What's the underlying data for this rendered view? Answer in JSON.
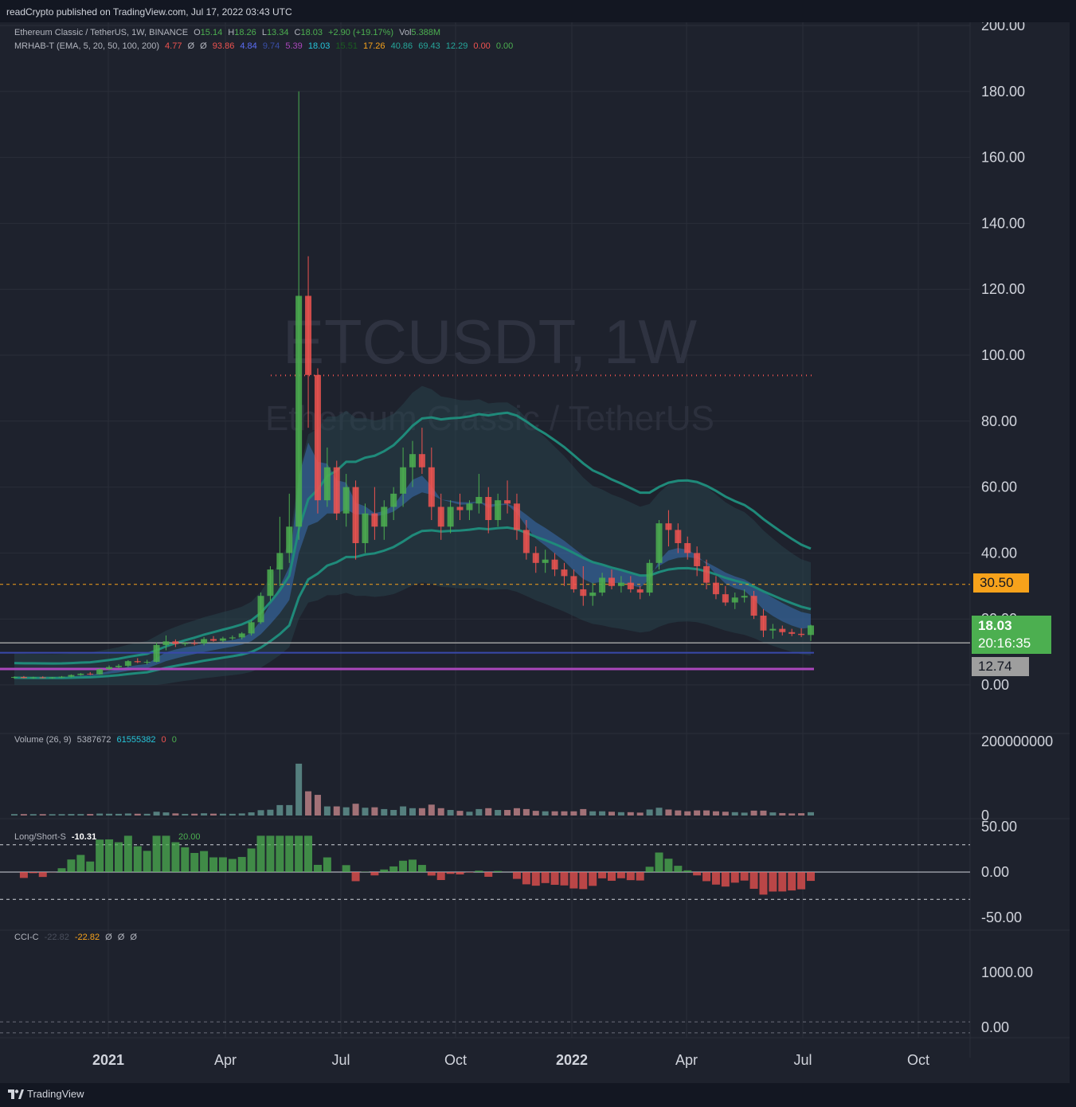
{
  "header": {
    "published_by": "readCrypto published on TradingView.com, Jul 17, 2022 03:43 UTC"
  },
  "legend_main": {
    "symbol": "Ethereum Classic / TetherUS, 1W, BINANCE",
    "o_label": "O",
    "o": "15.14",
    "h_label": "H",
    "h": "18.26",
    "l_label": "L",
    "l": "13.34",
    "c_label": "C",
    "c": "18.03",
    "change": "+2.90 (+19.17%)",
    "vol_label": "Vol",
    "vol": "5.388M"
  },
  "legend_mrhab": {
    "name": "MRHAB-T (EMA, 5, 20, 50, 100, 200)",
    "values": [
      "4.77",
      "Ø",
      "Ø",
      "93.86",
      "4.84",
      "9.74",
      "5.39",
      "18.03",
      "15.51",
      "17.26",
      "40.86",
      "69.43",
      "12.29",
      "0.00",
      "0.00"
    ]
  },
  "legend_volume": {
    "name": "Volume (26, 9)",
    "v1": "5387672",
    "v2": "61555382",
    "v3": "0",
    "v4": "0"
  },
  "legend_ls": {
    "name": "Long/Short-S",
    "value": "-10.31",
    "level": "20.00"
  },
  "legend_cci": {
    "name": "CCI-C",
    "v1": "-22.82",
    "v2": "-22.82",
    "v3": "Ø",
    "v4": "Ø",
    "v5": "Ø"
  },
  "watermark": {
    "symbol": "ETCUSDT, 1W",
    "name": "Ethereum Classic / TetherUS"
  },
  "price_axis": {
    "ticks": [
      "200.00",
      "180.00",
      "160.00",
      "140.00",
      "120.00",
      "100.00",
      "80.00",
      "60.00",
      "40.00",
      "20.00",
      "0.00"
    ]
  },
  "volume_axis": {
    "ticks": [
      "200000000",
      "0"
    ]
  },
  "ls_axis": {
    "ticks": [
      "50.00",
      "0.00",
      "-50.00"
    ]
  },
  "cci_axis": {
    "ticks": [
      "1000.00",
      "0.00"
    ]
  },
  "time_axis": {
    "ticks": [
      "2021",
      "Apr",
      "Jul",
      "Oct",
      "2022",
      "Apr",
      "Jul",
      "Oct"
    ]
  },
  "badges": {
    "orange_level": "30.50",
    "last_price": "18.03",
    "countdown": "20:16:35",
    "gray_level": "12.74"
  },
  "colors": {
    "up": "#4caf50",
    "down": "#ef5350",
    "orange": "#f7a21b",
    "teal": "#26a69a",
    "background": "#1e222d"
  },
  "chart_data": {
    "type": "candlestick",
    "timeframe": "1W",
    "ylim": [
      0,
      200
    ],
    "candles": [
      [
        2.2,
        2.6,
        1.9,
        2.4
      ],
      [
        2.4,
        2.7,
        2.0,
        2.1
      ],
      [
        2.1,
        2.5,
        1.9,
        2.3
      ],
      [
        2.3,
        2.6,
        2.0,
        2.1
      ],
      [
        2.1,
        2.4,
        1.9,
        2.3
      ],
      [
        2.3,
        2.7,
        2.1,
        2.5
      ],
      [
        2.5,
        3.2,
        2.3,
        3.0
      ],
      [
        3.0,
        3.6,
        2.8,
        3.4
      ],
      [
        3.4,
        3.9,
        3.0,
        3.2
      ],
      [
        3.2,
        5.0,
        3.1,
        4.8
      ],
      [
        4.8,
        5.9,
        4.4,
        5.4
      ],
      [
        5.4,
        6.3,
        5.0,
        5.8
      ],
      [
        5.8,
        7.5,
        5.4,
        7.2
      ],
      [
        7.2,
        8.1,
        6.6,
        6.9
      ],
      [
        6.9,
        7.6,
        6.2,
        7.0
      ],
      [
        7.0,
        12.8,
        6.8,
        12.1
      ],
      [
        12.1,
        15.0,
        10.5,
        13.2
      ],
      [
        13.2,
        13.8,
        11.5,
        12.4
      ],
      [
        12.4,
        13.0,
        11.8,
        12.7
      ],
      [
        12.7,
        13.6,
        12.0,
        12.6
      ],
      [
        12.6,
        14.5,
        12.0,
        13.9
      ],
      [
        13.9,
        14.8,
        13.1,
        13.4
      ],
      [
        13.4,
        14.6,
        13.0,
        14.1
      ],
      [
        14.1,
        15.0,
        13.6,
        14.4
      ],
      [
        14.4,
        16.0,
        13.8,
        15.6
      ],
      [
        15.6,
        19.6,
        15.0,
        19.0
      ],
      [
        19.0,
        28.0,
        18.5,
        27.0
      ],
      [
        27.0,
        36.0,
        25.5,
        35.0
      ],
      [
        35.0,
        51.0,
        30.0,
        40.0
      ],
      [
        40.0,
        58.0,
        37.0,
        48.0
      ],
      [
        48.0,
        180.0,
        44.0,
        118.0
      ],
      [
        118.0,
        130.0,
        78.0,
        94.0
      ],
      [
        94.0,
        96.0,
        52.0,
        56.0
      ],
      [
        56.0,
        72.0,
        54.0,
        66.0
      ],
      [
        66.0,
        68.0,
        50.0,
        52.0
      ],
      [
        52.0,
        64.0,
        48.0,
        60.0
      ],
      [
        60.0,
        62.0,
        38.0,
        43.0
      ],
      [
        43.0,
        55.0,
        40.0,
        52.0
      ],
      [
        52.0,
        60.0,
        44.0,
        48.0
      ],
      [
        48.0,
        56.0,
        44.0,
        54.0
      ],
      [
        54.0,
        60.0,
        50.0,
        58.0
      ],
      [
        58.0,
        72.0,
        54.0,
        66.0
      ],
      [
        66.0,
        74.0,
        60.0,
        70.0
      ],
      [
        70.0,
        78.0,
        64.0,
        66.0
      ],
      [
        66.0,
        72.0,
        50.0,
        54.0
      ],
      [
        54.0,
        58.0,
        44.0,
        48.0
      ],
      [
        48.0,
        56.0,
        46.0,
        54.0
      ],
      [
        54.0,
        58.0,
        50.0,
        53.0
      ],
      [
        53.0,
        56.0,
        50.0,
        55.0
      ],
      [
        55.0,
        64.0,
        52.0,
        57.0
      ],
      [
        57.0,
        60.0,
        46.0,
        50.0
      ],
      [
        50.0,
        58.0,
        48.0,
        56.0
      ],
      [
        56.0,
        62.0,
        52.0,
        55.0
      ],
      [
        55.0,
        58.0,
        44.0,
        47.0
      ],
      [
        47.0,
        50.0,
        38.0,
        40.0
      ],
      [
        40.0,
        42.0,
        34.0,
        37.0
      ],
      [
        37.0,
        41.0,
        34.0,
        38.0
      ],
      [
        38.0,
        40.0,
        33.0,
        35.0
      ],
      [
        35.0,
        37.0,
        30.0,
        33.0
      ],
      [
        33.0,
        35.0,
        28.0,
        29.0
      ],
      [
        29.0,
        36.0,
        24.0,
        27.0
      ],
      [
        27.0,
        31.0,
        24.0,
        28.0
      ],
      [
        28.0,
        34.0,
        27.0,
        32.5
      ],
      [
        32.5,
        35.0,
        29.0,
        30.0
      ],
      [
        30.0,
        33.0,
        28.0,
        31.0
      ],
      [
        31.0,
        33.0,
        28.0,
        29.0
      ],
      [
        29.0,
        30.0,
        26.0,
        28.0
      ],
      [
        28.0,
        38.0,
        27.0,
        37.0
      ],
      [
        37.0,
        50.0,
        35.0,
        49.0
      ],
      [
        49.0,
        53.0,
        42.0,
        47.0
      ],
      [
        47.0,
        49.0,
        40.0,
        43.0
      ],
      [
        43.0,
        45.0,
        38.0,
        40.0
      ],
      [
        40.0,
        42.0,
        33.0,
        36.0
      ],
      [
        36.0,
        38.0,
        29.0,
        31.0
      ],
      [
        31.0,
        33.0,
        26.0,
        27.5
      ],
      [
        27.5,
        30.0,
        24.0,
        25.0
      ],
      [
        25.0,
        28.0,
        23.0,
        26.5
      ],
      [
        26.5,
        29.0,
        25.0,
        27.0
      ],
      [
        27.0,
        28.5,
        20.0,
        21.0
      ],
      [
        21.0,
        23.0,
        14.5,
        16.5
      ],
      [
        16.5,
        18.5,
        14.0,
        17.0
      ],
      [
        17.0,
        18.0,
        15.0,
        16.0
      ],
      [
        16.0,
        17.0,
        14.8,
        15.5
      ],
      [
        15.5,
        17.2,
        14.5,
        15.14
      ],
      [
        15.14,
        18.26,
        13.34,
        18.03
      ]
    ]
  }
}
